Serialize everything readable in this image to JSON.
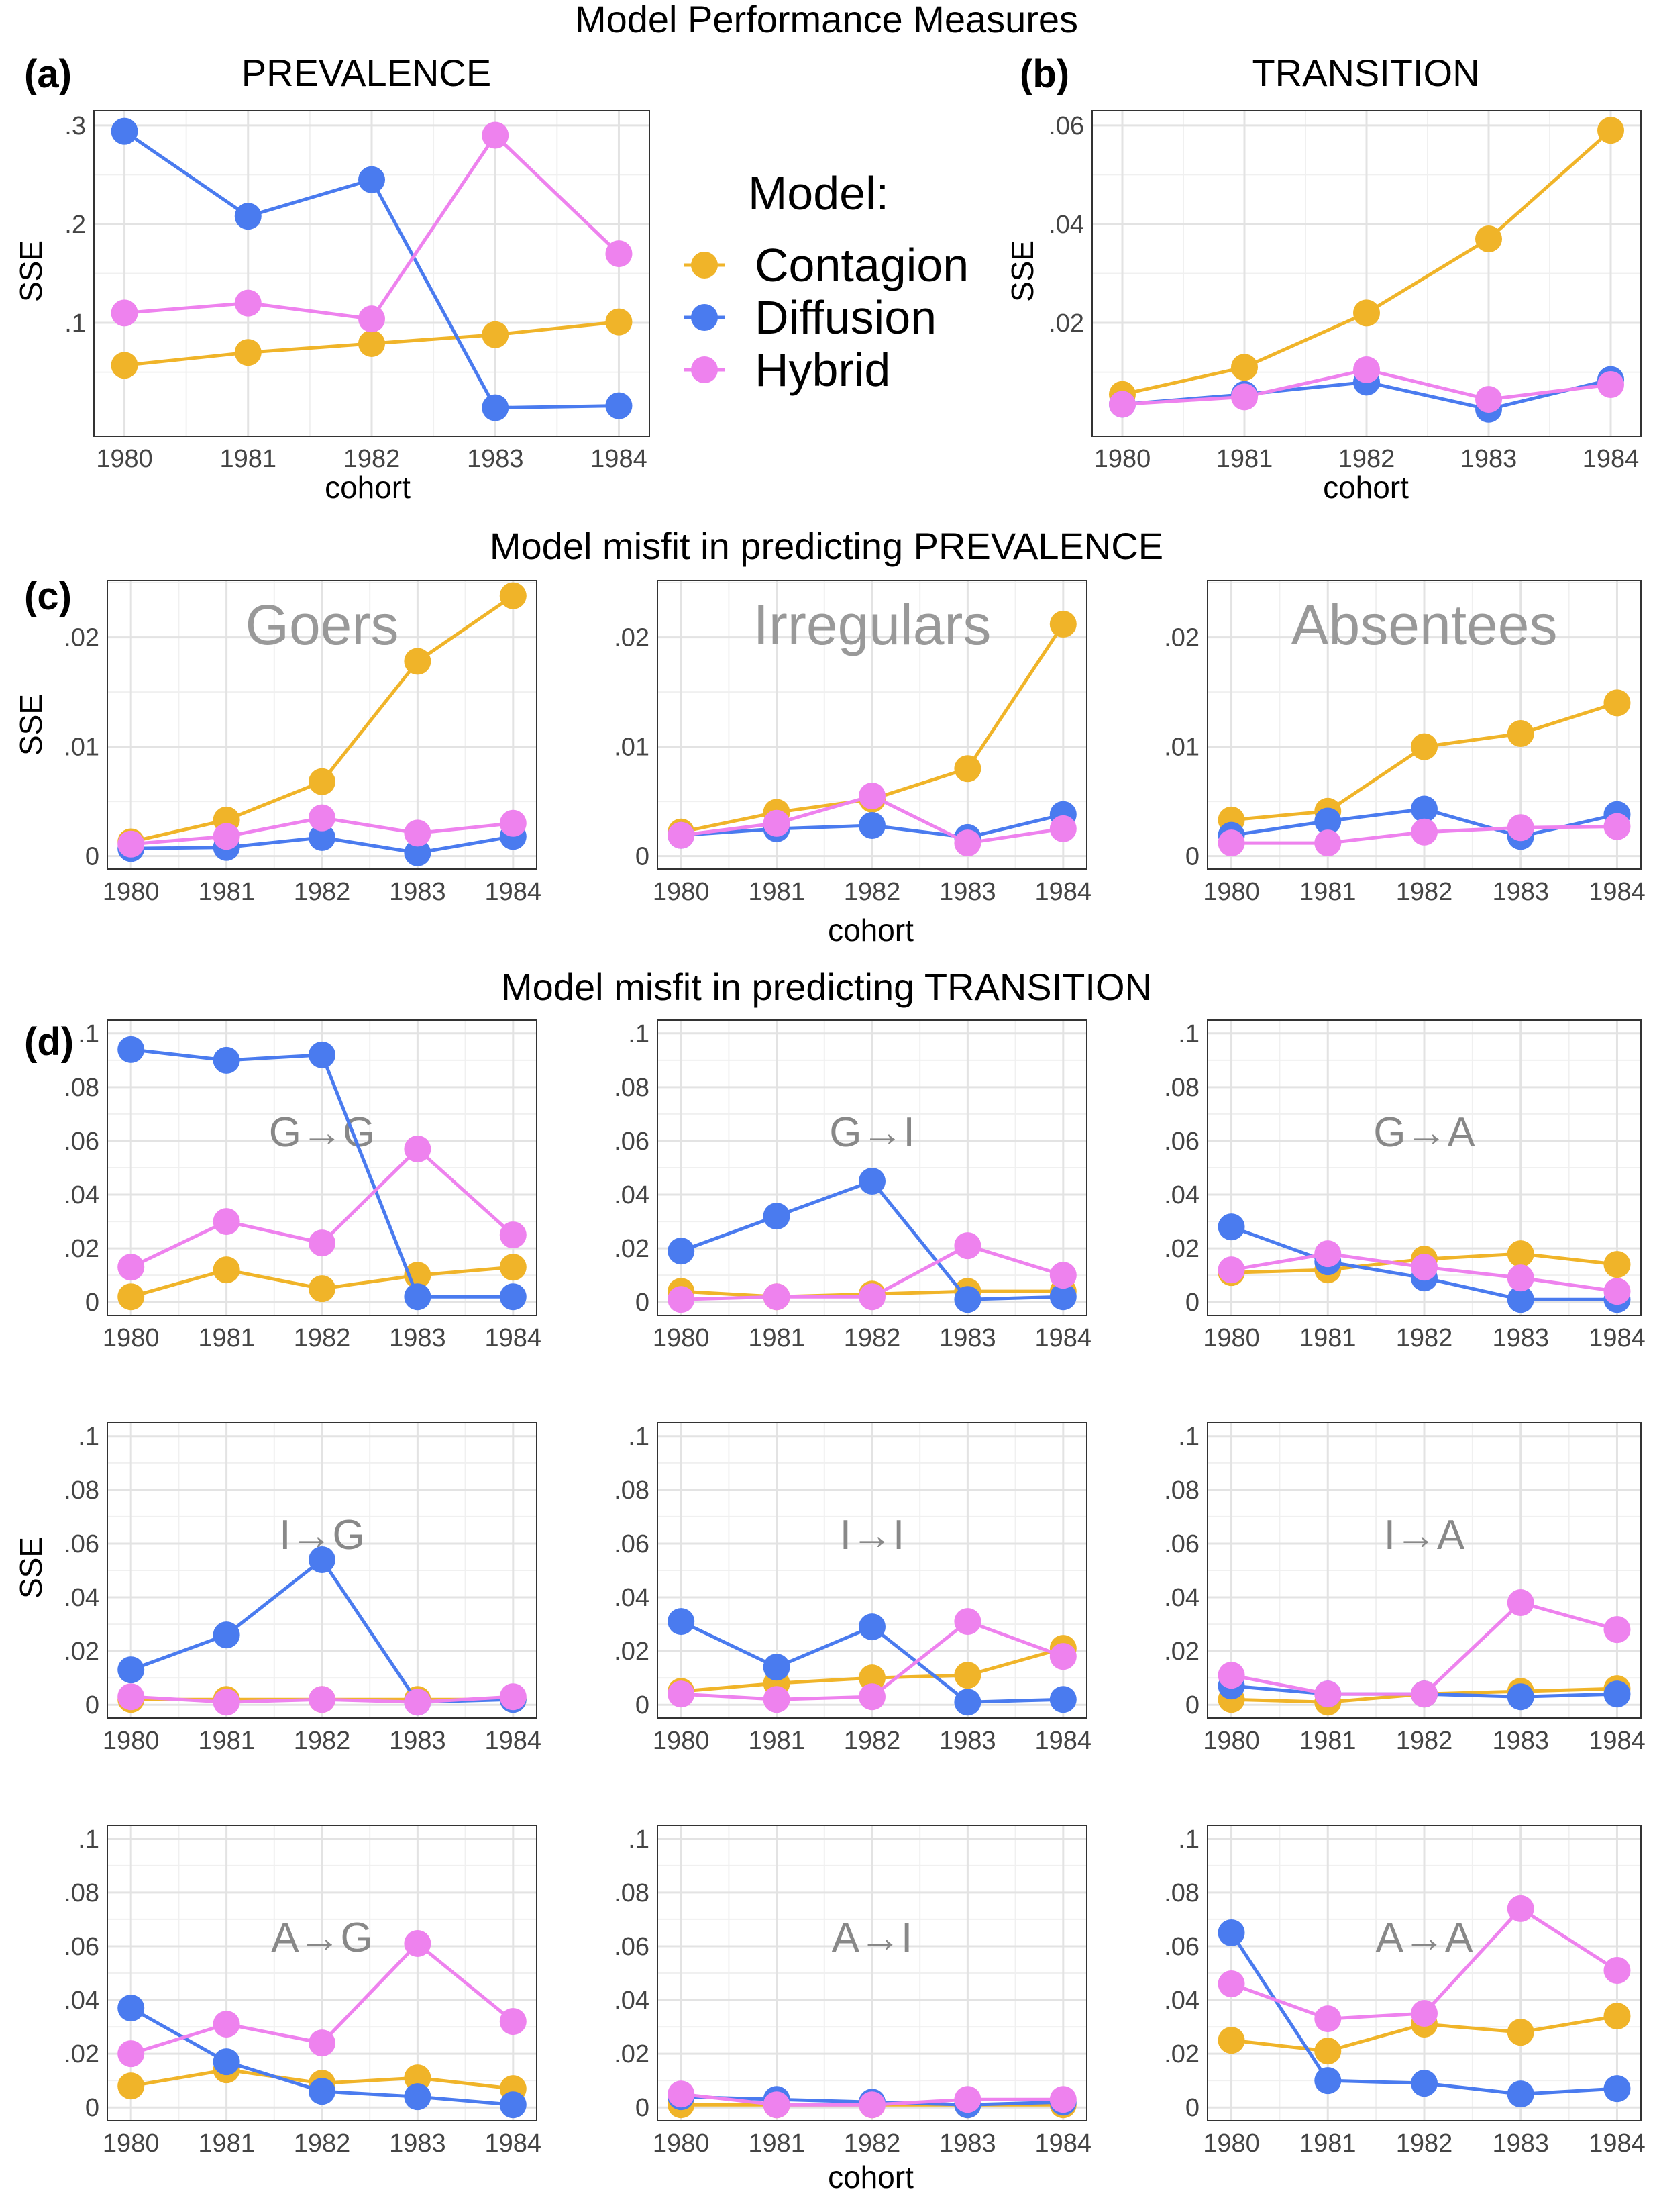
{
  "colors": {
    "Contagion": "#F0B429",
    "Diffusion": "#4A7BEF",
    "Hybrid": "#EE82EE"
  },
  "titles": {
    "main": "Model Performance Measures",
    "c": "Model misfit in predicting PREVALENCE",
    "d": "Model misfit in predicting TRANSITION"
  },
  "labels": {
    "a": "(a)",
    "b": "(b)",
    "c": "(c)",
    "d": "(d)",
    "prevalence": "PREVALENCE",
    "transition": "TRANSITION",
    "cohort": "cohort",
    "sse": "SSE"
  },
  "legend": {
    "title": "Model:",
    "items": [
      "Contagion",
      "Diffusion",
      "Hybrid"
    ]
  },
  "chart_data": [
    {
      "id": "a",
      "type": "line",
      "title": "PREVALENCE",
      "ylabel": "SSE",
      "xlabel": "cohort",
      "x": [
        1980,
        1981,
        1982,
        1983,
        1984
      ],
      "ylim": [
        0,
        0.3
      ],
      "yticks": [
        0.1,
        0.2,
        0.3
      ],
      "ytick_labels": [
        ".1",
        ".2",
        ".3"
      ],
      "series": [
        {
          "name": "Contagion",
          "values": [
            0.057,
            0.07,
            0.079,
            0.088,
            0.101
          ]
        },
        {
          "name": "Diffusion",
          "values": [
            0.294,
            0.208,
            0.245,
            0.014,
            0.016
          ]
        },
        {
          "name": "Hybrid",
          "values": [
            0.11,
            0.12,
            0.104,
            0.29,
            0.17
          ]
        }
      ]
    },
    {
      "id": "b",
      "type": "line",
      "title": "TRANSITION",
      "ylabel": "SSE",
      "xlabel": "cohort",
      "x": [
        1980,
        1981,
        1982,
        1983,
        1984
      ],
      "ylim": [
        0,
        0.06
      ],
      "yticks": [
        0.02,
        0.04,
        0.06
      ],
      "ytick_labels": [
        ".02",
        ".04",
        ".06"
      ],
      "series": [
        {
          "name": "Contagion",
          "values": [
            0.0055,
            0.011,
            0.022,
            0.037,
            0.059
          ]
        },
        {
          "name": "Diffusion",
          "values": [
            0.0035,
            0.0055,
            0.008,
            0.0025,
            0.0085
          ]
        },
        {
          "name": "Hybrid",
          "values": [
            0.0035,
            0.005,
            0.0105,
            0.0045,
            0.0075
          ]
        }
      ]
    },
    {
      "id": "c1",
      "type": "line",
      "title": "Goers",
      "ylabel": "SSE",
      "x": [
        1980,
        1981,
        1982,
        1983,
        1984
      ],
      "ylim": [
        0,
        0.024
      ],
      "yticks": [
        0,
        0.01,
        0.02
      ],
      "ytick_labels": [
        "0",
        ".01",
        ".02"
      ],
      "series": [
        {
          "name": "Contagion",
          "values": [
            0.0013,
            0.0033,
            0.0068,
            0.0178,
            0.0238
          ]
        },
        {
          "name": "Diffusion",
          "values": [
            0.0007,
            0.0008,
            0.0017,
            0.0003,
            0.0018
          ]
        },
        {
          "name": "Hybrid",
          "values": [
            0.0011,
            0.0018,
            0.0035,
            0.0021,
            0.003
          ]
        }
      ]
    },
    {
      "id": "c2",
      "type": "line",
      "title": "Irregulars",
      "xlabel": "cohort",
      "x": [
        1980,
        1981,
        1982,
        1983,
        1984
      ],
      "ylim": [
        0,
        0.024
      ],
      "yticks": [
        0,
        0.01,
        0.02
      ],
      "ytick_labels": [
        "0",
        ".01",
        ".02"
      ],
      "series": [
        {
          "name": "Contagion",
          "values": [
            0.0022,
            0.004,
            0.0052,
            0.008,
            0.0212
          ]
        },
        {
          "name": "Diffusion",
          "values": [
            0.0019,
            0.0025,
            0.0028,
            0.0017,
            0.0038
          ]
        },
        {
          "name": "Hybrid",
          "values": [
            0.0019,
            0.003,
            0.0055,
            0.0012,
            0.0025
          ]
        }
      ]
    },
    {
      "id": "c3",
      "type": "line",
      "title": "Absentees",
      "x": [
        1980,
        1981,
        1982,
        1983,
        1984
      ],
      "ylim": [
        0,
        0.024
      ],
      "yticks": [
        0,
        0.01,
        0.02
      ],
      "ytick_labels": [
        "0",
        ".01",
        ".02"
      ],
      "series": [
        {
          "name": "Contagion",
          "values": [
            0.0033,
            0.0041,
            0.01,
            0.0112,
            0.014
          ]
        },
        {
          "name": "Diffusion",
          "values": [
            0.0019,
            0.0032,
            0.0043,
            0.0018,
            0.0038
          ]
        },
        {
          "name": "Hybrid",
          "values": [
            0.0012,
            0.0012,
            0.0022,
            0.0026,
            0.0027
          ]
        }
      ]
    },
    {
      "id": "d1",
      "type": "line",
      "title": "G→G",
      "x": [
        1980,
        1981,
        1982,
        1983,
        1984
      ],
      "ylim": [
        0,
        0.1
      ],
      "yticks": [
        0,
        0.02,
        0.04,
        0.06,
        0.08,
        0.1
      ],
      "ytick_labels": [
        "0",
        ".02",
        ".04",
        ".06",
        ".08",
        ".1"
      ],
      "series": [
        {
          "name": "Contagion",
          "values": [
            0.002,
            0.012,
            0.005,
            0.01,
            0.013
          ]
        },
        {
          "name": "Diffusion",
          "values": [
            0.094,
            0.09,
            0.092,
            0.002,
            0.002
          ]
        },
        {
          "name": "Hybrid",
          "values": [
            0.013,
            0.03,
            0.022,
            0.057,
            0.025
          ]
        }
      ]
    },
    {
      "id": "d2",
      "type": "line",
      "title": "G→I",
      "x": [
        1980,
        1981,
        1982,
        1983,
        1984
      ],
      "ylim": [
        0,
        0.1
      ],
      "yticks": [
        0,
        0.02,
        0.04,
        0.06,
        0.08,
        0.1
      ],
      "ytick_labels": [
        "0",
        ".02",
        ".04",
        ".06",
        ".08",
        ".1"
      ],
      "series": [
        {
          "name": "Contagion",
          "values": [
            0.004,
            0.002,
            0.003,
            0.004,
            0.004
          ]
        },
        {
          "name": "Diffusion",
          "values": [
            0.019,
            0.032,
            0.045,
            0.001,
            0.002
          ]
        },
        {
          "name": "Hybrid",
          "values": [
            0.001,
            0.002,
            0.002,
            0.021,
            0.01
          ]
        }
      ]
    },
    {
      "id": "d3",
      "type": "line",
      "title": "G→A",
      "x": [
        1980,
        1981,
        1982,
        1983,
        1984
      ],
      "ylim": [
        0,
        0.1
      ],
      "yticks": [
        0,
        0.02,
        0.04,
        0.06,
        0.08,
        0.1
      ],
      "ytick_labels": [
        "0",
        ".02",
        ".04",
        ".06",
        ".08",
        ".1"
      ],
      "series": [
        {
          "name": "Contagion",
          "values": [
            0.011,
            0.012,
            0.016,
            0.018,
            0.014
          ]
        },
        {
          "name": "Diffusion",
          "values": [
            0.028,
            0.015,
            0.009,
            0.001,
            0.001
          ]
        },
        {
          "name": "Hybrid",
          "values": [
            0.012,
            0.018,
            0.013,
            0.009,
            0.004
          ]
        }
      ]
    },
    {
      "id": "d4",
      "type": "line",
      "title": "I→G",
      "ylabel": "SSE",
      "x": [
        1980,
        1981,
        1982,
        1983,
        1984
      ],
      "ylim": [
        0,
        0.1
      ],
      "yticks": [
        0,
        0.02,
        0.04,
        0.06,
        0.08,
        0.1
      ],
      "ytick_labels": [
        "0",
        ".02",
        ".04",
        ".06",
        ".08",
        ".1"
      ],
      "series": [
        {
          "name": "Contagion",
          "values": [
            0.002,
            0.002,
            0.002,
            0.002,
            0.002
          ]
        },
        {
          "name": "Diffusion",
          "values": [
            0.013,
            0.026,
            0.054,
            0.001,
            0.002
          ]
        },
        {
          "name": "Hybrid",
          "values": [
            0.003,
            0.001,
            0.002,
            0.001,
            0.003
          ]
        }
      ]
    },
    {
      "id": "d5",
      "type": "line",
      "title": "I→I",
      "x": [
        1980,
        1981,
        1982,
        1983,
        1984
      ],
      "ylim": [
        0,
        0.1
      ],
      "yticks": [
        0,
        0.02,
        0.04,
        0.06,
        0.08,
        0.1
      ],
      "ytick_labels": [
        "0",
        ".02",
        ".04",
        ".06",
        ".08",
        ".1"
      ],
      "series": [
        {
          "name": "Contagion",
          "values": [
            0.005,
            0.008,
            0.01,
            0.011,
            0.021
          ]
        },
        {
          "name": "Diffusion",
          "values": [
            0.031,
            0.014,
            0.029,
            0.001,
            0.002
          ]
        },
        {
          "name": "Hybrid",
          "values": [
            0.004,
            0.002,
            0.003,
            0.031,
            0.018
          ]
        }
      ]
    },
    {
      "id": "d6",
      "type": "line",
      "title": "I→A",
      "x": [
        1980,
        1981,
        1982,
        1983,
        1984
      ],
      "ylim": [
        0,
        0.1
      ],
      "yticks": [
        0,
        0.02,
        0.04,
        0.06,
        0.08,
        0.1
      ],
      "ytick_labels": [
        "0",
        ".02",
        ".04",
        ".06",
        ".08",
        ".1"
      ],
      "series": [
        {
          "name": "Contagion",
          "values": [
            0.002,
            0.001,
            0.004,
            0.005,
            0.006
          ]
        },
        {
          "name": "Diffusion",
          "values": [
            0.007,
            0.004,
            0.004,
            0.003,
            0.004
          ]
        },
        {
          "name": "Hybrid",
          "values": [
            0.011,
            0.004,
            0.004,
            0.038,
            0.028
          ]
        }
      ]
    },
    {
      "id": "d7",
      "type": "line",
      "title": "A→G",
      "x": [
        1980,
        1981,
        1982,
        1983,
        1984
      ],
      "ylim": [
        0,
        0.1
      ],
      "yticks": [
        0,
        0.02,
        0.04,
        0.06,
        0.08,
        0.1
      ],
      "ytick_labels": [
        "0",
        ".02",
        ".04",
        ".06",
        ".08",
        ".1"
      ],
      "series": [
        {
          "name": "Contagion",
          "values": [
            0.008,
            0.014,
            0.009,
            0.011,
            0.007
          ]
        },
        {
          "name": "Diffusion",
          "values": [
            0.037,
            0.017,
            0.006,
            0.004,
            0.001
          ]
        },
        {
          "name": "Hybrid",
          "values": [
            0.02,
            0.031,
            0.024,
            0.061,
            0.032
          ]
        }
      ]
    },
    {
      "id": "d8",
      "type": "line",
      "title": "A→I",
      "xlabel": "cohort",
      "x": [
        1980,
        1981,
        1982,
        1983,
        1984
      ],
      "ylim": [
        0,
        0.1
      ],
      "yticks": [
        0,
        0.02,
        0.04,
        0.06,
        0.08,
        0.1
      ],
      "ytick_labels": [
        "0",
        ".02",
        ".04",
        ".06",
        ".08",
        ".1"
      ],
      "series": [
        {
          "name": "Contagion",
          "values": [
            0.001,
            0.001,
            0.001,
            0.001,
            0.001
          ]
        },
        {
          "name": "Diffusion",
          "values": [
            0.004,
            0.003,
            0.002,
            0.001,
            0.002
          ]
        },
        {
          "name": "Hybrid",
          "values": [
            0.005,
            0.001,
            0.001,
            0.003,
            0.003
          ]
        }
      ]
    },
    {
      "id": "d9",
      "type": "line",
      "title": "A→A",
      "x": [
        1980,
        1981,
        1982,
        1983,
        1984
      ],
      "ylim": [
        0,
        0.1
      ],
      "yticks": [
        0,
        0.02,
        0.04,
        0.06,
        0.08,
        0.1
      ],
      "ytick_labels": [
        "0",
        ".02",
        ".04",
        ".06",
        ".08",
        ".1"
      ],
      "series": [
        {
          "name": "Contagion",
          "values": [
            0.025,
            0.021,
            0.031,
            0.028,
            0.034
          ]
        },
        {
          "name": "Diffusion",
          "values": [
            0.065,
            0.01,
            0.009,
            0.005,
            0.007
          ]
        },
        {
          "name": "Hybrid",
          "values": [
            0.046,
            0.033,
            0.035,
            0.074,
            0.051
          ]
        }
      ]
    }
  ]
}
